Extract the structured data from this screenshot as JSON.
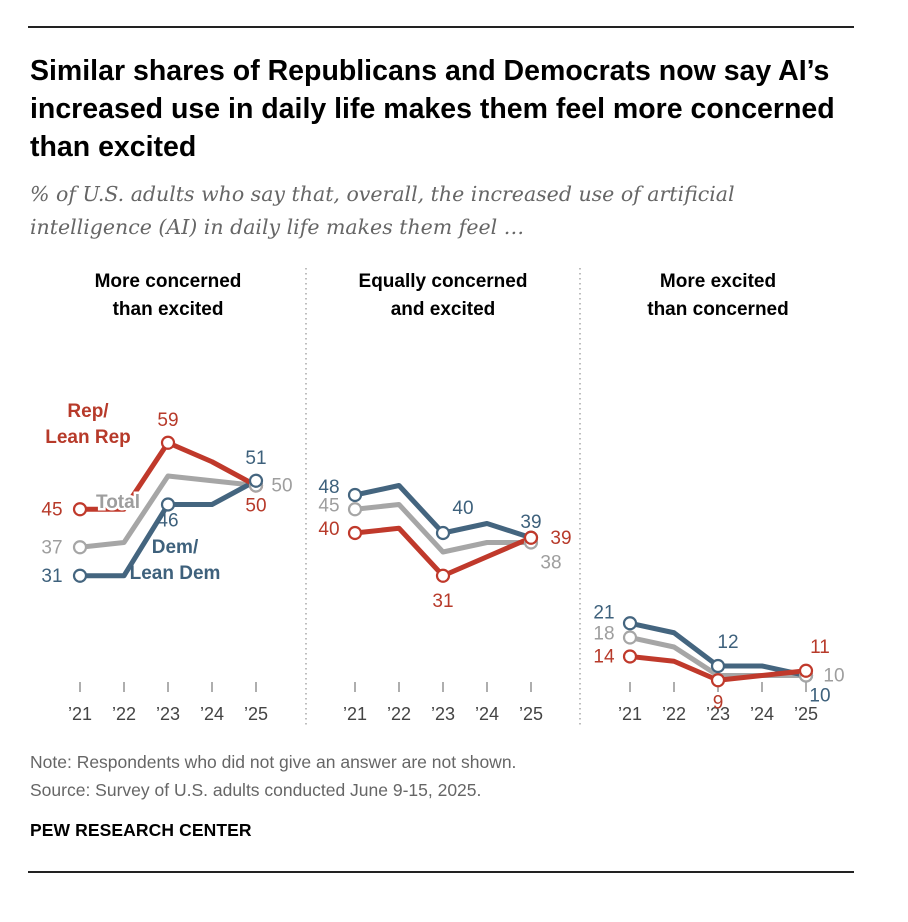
{
  "header": {
    "title": "Similar shares of Republicans and Democrats now say AI’s increased use in daily life makes them feel more concerned than excited",
    "subtitle": "% of U.S. adults who say that, overall, the increased use of artificial intelligence (AI) in daily life makes them feel …"
  },
  "footer": {
    "note": "Note: Respondents who did not give an answer are not shown.",
    "source": "Source: Survey of U.S. adults conducted June 9-15, 2025.",
    "brand": "PEW RESEARCH CENTER"
  },
  "colors": {
    "rep": "#c0392b",
    "dem": "#44657f",
    "total": "#a6a6a6",
    "divider": "#9a9a9a",
    "axis": "#666666",
    "rep_label": "#b73a2a",
    "dem_label": "#3e617c",
    "total_label": "#9e9e9e"
  },
  "chart_data": {
    "type": "line",
    "x": [
      "’21",
      "’22",
      "’23",
      "’24",
      "’25"
    ],
    "panels": [
      {
        "title": [
          "More concerned",
          "than excited"
        ],
        "series": [
          {
            "name": "Rep/Lean Rep",
            "key": "rep",
            "values": [
              45,
              45,
              59,
              55,
              50
            ]
          },
          {
            "name": "Total",
            "key": "total",
            "values": [
              37,
              38,
              52,
              51,
              50
            ]
          },
          {
            "name": "Dem/Lean Dem",
            "key": "dem",
            "values": [
              31,
              31,
              46,
              46,
              51
            ]
          }
        ],
        "labels": [
          {
            "series": "rep",
            "index": 0,
            "text": "45"
          },
          {
            "series": "rep",
            "index": 2,
            "text": "59"
          },
          {
            "series": "rep",
            "index": 4,
            "text": "50"
          },
          {
            "series": "total",
            "index": 0,
            "text": "37"
          },
          {
            "series": "total",
            "index": 4,
            "text": "50"
          },
          {
            "series": "dem",
            "index": 0,
            "text": "31"
          },
          {
            "series": "dem",
            "index": 2,
            "text": "46"
          },
          {
            "series": "dem",
            "index": 4,
            "text": "51"
          }
        ],
        "series_labels": [
          {
            "series": "rep",
            "lines": [
              "Rep/",
              "Lean Rep"
            ]
          },
          {
            "series": "total",
            "lines": [
              "Total"
            ]
          },
          {
            "series": "dem",
            "lines": [
              "Dem/",
              "Lean Dem"
            ]
          }
        ]
      },
      {
        "title": [
          "Equally concerned",
          "and excited"
        ],
        "series": [
          {
            "name": "Dem/Lean Dem",
            "key": "dem",
            "values": [
              48,
              50,
              40,
              42,
              39
            ]
          },
          {
            "name": "Total",
            "key": "total",
            "values": [
              45,
              46,
              36,
              38,
              38
            ]
          },
          {
            "name": "Rep/Lean Rep",
            "key": "rep",
            "values": [
              40,
              41,
              31,
              35,
              39
            ]
          }
        ],
        "labels": [
          {
            "series": "dem",
            "index": 0,
            "text": "48"
          },
          {
            "series": "dem",
            "index": 2,
            "text": "40"
          },
          {
            "series": "dem",
            "index": 4,
            "text": "39"
          },
          {
            "series": "total",
            "index": 0,
            "text": "45"
          },
          {
            "series": "total",
            "index": 4,
            "text": "38"
          },
          {
            "series": "rep",
            "index": 0,
            "text": "40"
          },
          {
            "series": "rep",
            "index": 2,
            "text": "31"
          },
          {
            "series": "rep",
            "index": 4,
            "text": "39"
          }
        ]
      },
      {
        "title": [
          "More excited",
          "than concerned"
        ],
        "series": [
          {
            "name": "Dem/Lean Dem",
            "key": "dem",
            "values": [
              21,
              19,
              12,
              12,
              10
            ]
          },
          {
            "name": "Total",
            "key": "total",
            "values": [
              18,
              16,
              10,
              10,
              10
            ]
          },
          {
            "name": "Rep/Lean Rep",
            "key": "rep",
            "values": [
              14,
              13,
              9,
              10,
              11
            ]
          }
        ],
        "labels": [
          {
            "series": "dem",
            "index": 0,
            "text": "21"
          },
          {
            "series": "dem",
            "index": 2,
            "text": "12"
          },
          {
            "series": "dem",
            "index": 4,
            "text": "10"
          },
          {
            "series": "total",
            "index": 0,
            "text": "18"
          },
          {
            "series": "total",
            "index": 4,
            "text": "10"
          },
          {
            "series": "rep",
            "index": 0,
            "text": "14"
          },
          {
            "series": "rep",
            "index": 2,
            "text": "9"
          },
          {
            "series": "rep",
            "index": 4,
            "text": "11"
          }
        ]
      }
    ]
  }
}
